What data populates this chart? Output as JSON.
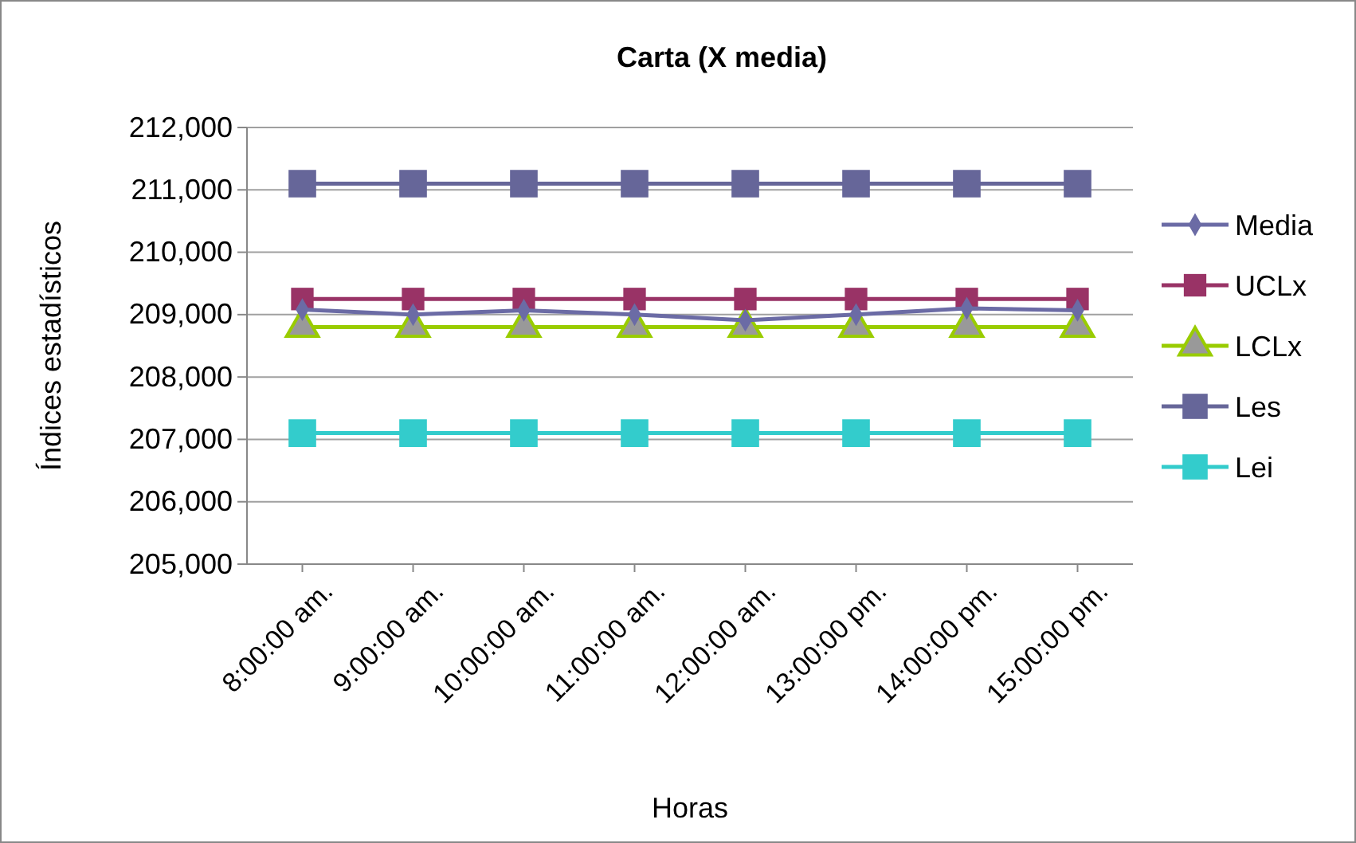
{
  "chart_data": {
    "type": "line",
    "title": "Carta (X media)",
    "xlabel": "Horas",
    "ylabel": "Índices estadísticos",
    "categories": [
      "8:00:00 am.",
      "9:00:00 am.",
      "10:00:00 am.",
      "11:00:00 am.",
      "12:00:00 am.",
      "13:00:00 pm.",
      "14:00:00 pm.",
      "15:00:00 pm."
    ],
    "series": [
      {
        "name": "Media",
        "color": "#6b6ba5",
        "marker": "diamond",
        "values": [
          209080,
          209000,
          209070,
          209000,
          208910,
          209000,
          209100,
          209070
        ]
      },
      {
        "name": "UCLx",
        "color": "#993366",
        "marker": "square",
        "values": [
          209250,
          209250,
          209250,
          209250,
          209250,
          209250,
          209250,
          209250
        ]
      },
      {
        "name": "LCLx",
        "color": "#99cc00",
        "marker": "triangle",
        "values": [
          208800,
          208800,
          208800,
          208800,
          208800,
          208800,
          208800,
          208800
        ]
      },
      {
        "name": "Les",
        "color": "#666699",
        "marker": "square",
        "values": [
          211100,
          211100,
          211100,
          211100,
          211100,
          211100,
          211100,
          211100
        ]
      },
      {
        "name": "Lei",
        "color": "#33cccc",
        "marker": "square",
        "values": [
          207100,
          207100,
          207100,
          207100,
          207100,
          207100,
          207100,
          207100
        ]
      }
    ],
    "ylim": [
      205000,
      212000
    ],
    "yticks": [
      {
        "value": 205000,
        "label": "205,000"
      },
      {
        "value": 206000,
        "label": "206,000"
      },
      {
        "value": 207000,
        "label": "207,000"
      },
      {
        "value": 208000,
        "label": "208,000"
      },
      {
        "value": 209000,
        "label": "209,000"
      },
      {
        "value": 210000,
        "label": "210,000"
      },
      {
        "value": 211000,
        "label": "211,000"
      },
      {
        "value": 212000,
        "label": "212,000"
      }
    ],
    "grid": "y",
    "legend": "right"
  }
}
